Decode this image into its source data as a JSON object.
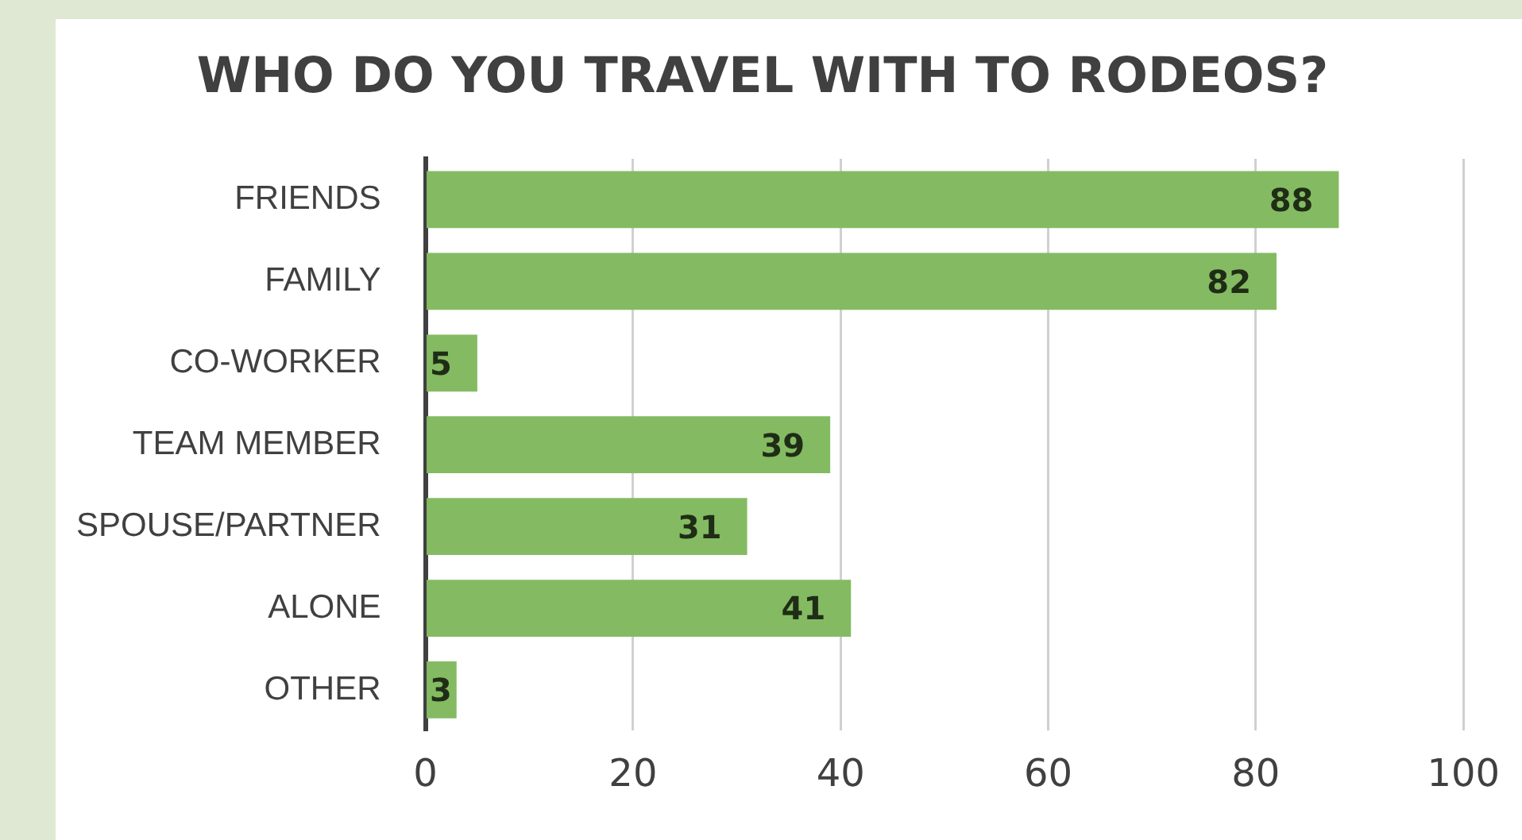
{
  "chart_data": {
    "type": "bar",
    "orientation": "horizontal",
    "title": "WHO DO YOU TRAVEL WITH TO RODEOS?",
    "categories": [
      "FRIENDS",
      "FAMILY",
      "CO-WORKER",
      "TEAM MEMBER",
      "SPOUSE/PARTNER",
      "ALONE",
      "OTHER"
    ],
    "values": [
      88,
      82,
      5,
      39,
      31,
      41,
      3
    ],
    "color": "#84bb62",
    "xlim": [
      0,
      100
    ],
    "xticks": [
      0,
      20,
      40,
      60,
      80,
      100
    ],
    "grid": "x",
    "data_labels": true,
    "legend": false
  }
}
